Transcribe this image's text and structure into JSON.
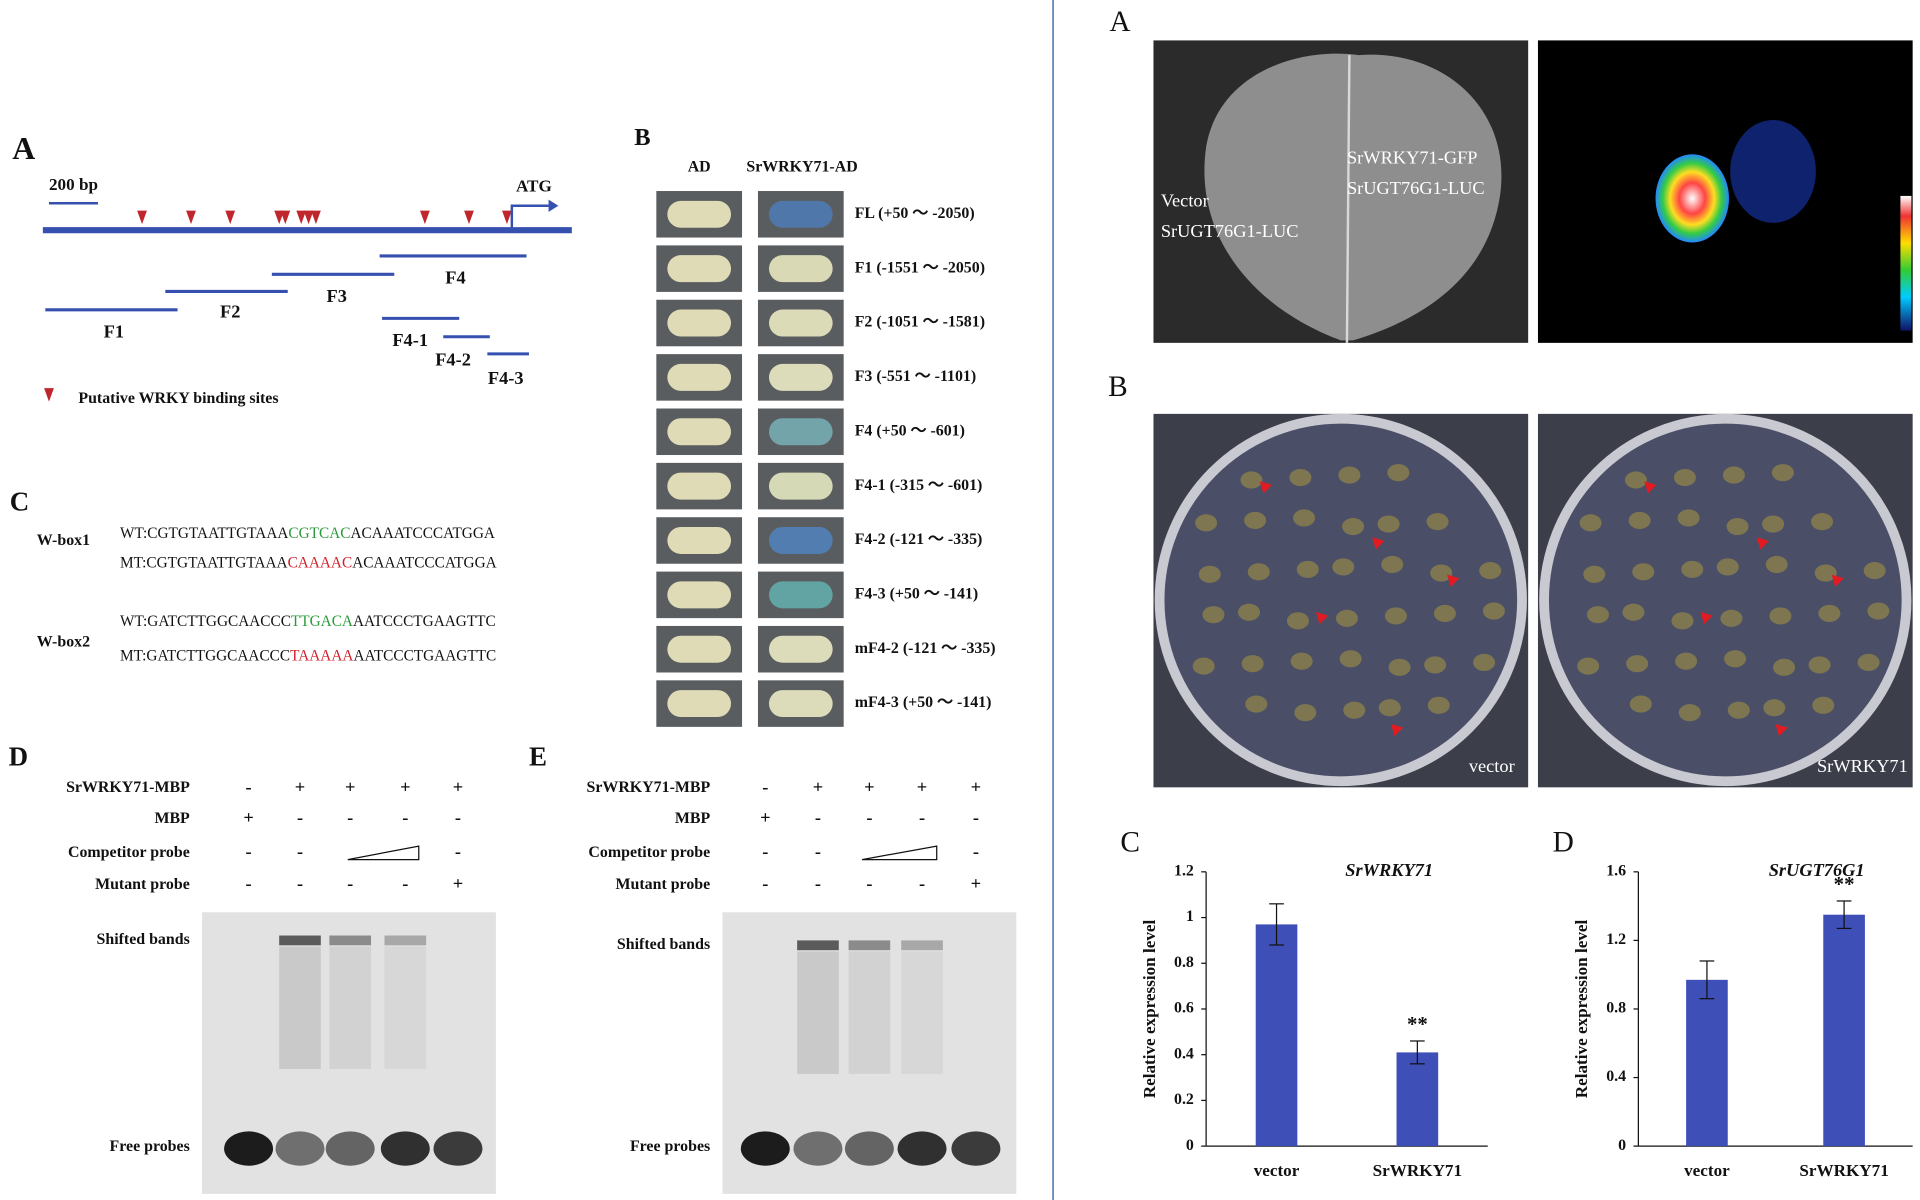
{
  "left": {
    "panel_a": {
      "label": "A",
      "scale": "200 bp",
      "atg": "ATG",
      "fragments": [
        "F1",
        "F2",
        "F3",
        "F4",
        "F4-1",
        "F4-2",
        "F4-3"
      ],
      "legend": "Putative WRKY binding sites"
    },
    "panel_b": {
      "label": "B",
      "columns": [
        "AD",
        "SrWRKY71-AD"
      ],
      "rows": [
        "FL (+50 ～ -2050)",
        "F1 (-1551 ～ -2050)",
        "F2 (-1051 ～ -1581)",
        "F3 (-551 ～ -1101)",
        "F4 (+50 ～ -601)",
        "F4-1 (-315 ～ -601)",
        "F4-2 (-121 ～ -335)",
        "F4-3 (+50 ～ -141)",
        "mF4-2 (-121 ～ -335)",
        "mF4-3 (+50 ～ -141)"
      ]
    },
    "panel_c": {
      "label": "C",
      "boxes": [
        {
          "name": "W-box1",
          "wt": [
            "WT:CGTGTAATTGTAAA",
            "CGTCAC",
            "ACAAATCCCATGGA"
          ],
          "mt": [
            "MT:CGTGTAATTGTAAA",
            "CAAAAC",
            "ACAAATCCCATGGA"
          ]
        },
        {
          "name": "W-box2",
          "wt": [
            "WT:GATCTTGGCAACCC",
            "TTGACA",
            "AATCCCTGAAGTTC"
          ],
          "mt": [
            "MT:GATCTTGGCAACCC",
            "TAAAAA",
            "AATCCCTGAAGTTC"
          ]
        }
      ]
    },
    "panel_d": {
      "label": "D",
      "rows": [
        {
          "label": "SrWRKY71-MBP",
          "signs": [
            "-",
            "+",
            "+",
            "+",
            "+"
          ]
        },
        {
          "label": "MBP",
          "signs": [
            "+",
            "-",
            "-",
            "-",
            "-"
          ]
        },
        {
          "label": "Competitor probe",
          "signs": [
            "-",
            "-",
            "-"
          ]
        },
        {
          "label": "Mutant probe",
          "signs": [
            "-",
            "-",
            "-",
            "-",
            "+"
          ]
        }
      ],
      "bands": [
        "Shifted bands",
        "Free probes"
      ]
    },
    "panel_e": {
      "label": "E",
      "rows": [
        {
          "label": "SrWRKY71-MBP",
          "signs": [
            "-",
            "+",
            "+",
            "+",
            "+"
          ]
        },
        {
          "label": "MBP",
          "signs": [
            "+",
            "-",
            "-",
            "-",
            "-"
          ]
        },
        {
          "label": "Competitor probe",
          "signs": [
            "-",
            "-",
            "-"
          ]
        },
        {
          "label": "Mutant probe",
          "signs": [
            "-",
            "-",
            "-",
            "-",
            "+"
          ]
        }
      ],
      "bands": [
        "Shifted bands",
        "Free probes"
      ]
    }
  },
  "right": {
    "panel_a": {
      "label": "A",
      "texts": [
        "SrWRKY71-GFP",
        "SrUGT76G1-LUC",
        "Vector",
        "SrUGT76G1-LUC"
      ]
    },
    "panel_b": {
      "label": "B",
      "plates": [
        "vector",
        "SrWRKY71"
      ]
    }
  },
  "chart_data": [
    {
      "type": "bar",
      "label": "C",
      "title": "SrWRKY71",
      "y_label": "Relative expression level",
      "categories": [
        "vector",
        "SrWRKY71"
      ],
      "values": [
        0.97,
        0.41
      ],
      "errors": [
        0.09,
        0.05
      ],
      "color": "#3f4fb8",
      "annotations": [
        {
          "text": "**",
          "x": "SrWRKY71"
        }
      ],
      "ylim": [
        0,
        1.2
      ],
      "yticks": [
        0,
        0.2,
        0.4,
        0.6,
        0.8,
        1,
        1.2
      ]
    },
    {
      "type": "bar",
      "label": "D",
      "title": "SrUGT76G1",
      "y_label": "Relative expression level",
      "categories": [
        "vector",
        "SrWRKY71"
      ],
      "values": [
        0.97,
        1.35
      ],
      "errors": [
        0.11,
        0.08
      ],
      "color": "#3f4fb8",
      "annotations": [
        {
          "text": "**",
          "x": "SrWRKY71"
        }
      ],
      "ylim": [
        0,
        1.6
      ],
      "yticks": [
        0,
        0.4,
        0.8,
        1.2,
        1.6
      ]
    }
  ]
}
